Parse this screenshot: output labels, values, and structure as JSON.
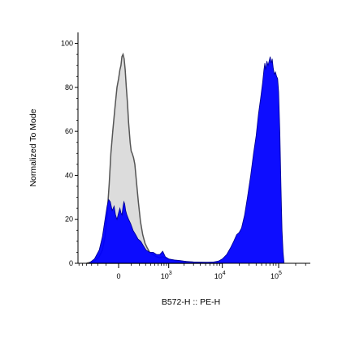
{
  "chart_data": {
    "type": "area",
    "xlabel": "B572-H :: PE-H",
    "ylabel": "Normalized To Mode",
    "ylim": [
      0,
      105
    ],
    "y_ticks": [
      "0",
      "20",
      "40",
      "60",
      "80",
      "100"
    ],
    "y_tick_values": [
      0,
      20,
      40,
      60,
      80,
      100
    ],
    "x_scale": "biexponential",
    "x_ticks": [
      {
        "value": 0,
        "base": "0",
        "exp": ""
      },
      {
        "value": 1000,
        "base": "10",
        "exp": "3"
      },
      {
        "value": 10000,
        "base": "10",
        "exp": "4"
      },
      {
        "value": 100000,
        "base": "10",
        "exp": "5"
      }
    ],
    "grid": false,
    "series": [
      {
        "fill": "#dcdcdc",
        "stroke": "#555555",
        "points": [
          [
            -400,
            0
          ],
          [
            -250,
            1
          ],
          [
            -180,
            3
          ],
          [
            -140,
            6
          ],
          [
            -110,
            12
          ],
          [
            -90,
            22
          ],
          [
            -70,
            36
          ],
          [
            -55,
            50
          ],
          [
            -40,
            60
          ],
          [
            -25,
            70
          ],
          [
            -10,
            80
          ],
          [
            0,
            84
          ],
          [
            8,
            88
          ],
          [
            15,
            90
          ],
          [
            22,
            94
          ],
          [
            30,
            95
          ],
          [
            38,
            93
          ],
          [
            46,
            88
          ],
          [
            55,
            80
          ],
          [
            65,
            73
          ],
          [
            75,
            64
          ],
          [
            90,
            55
          ],
          [
            100,
            51
          ],
          [
            110,
            50
          ],
          [
            125,
            48
          ],
          [
            140,
            45
          ],
          [
            160,
            37
          ],
          [
            185,
            28
          ],
          [
            215,
            19
          ],
          [
            250,
            13
          ],
          [
            290,
            9
          ],
          [
            330,
            7
          ],
          [
            380,
            5
          ],
          [
            450,
            4
          ],
          [
            550,
            3
          ],
          [
            650,
            2.5
          ],
          [
            750,
            3
          ],
          [
            850,
            2.5
          ],
          [
            950,
            2
          ],
          [
            1100,
            1.5
          ],
          [
            1300,
            1.2
          ],
          [
            1600,
            1
          ],
          [
            2000,
            0.8
          ],
          [
            3000,
            0.5
          ],
          [
            5000,
            0.3
          ],
          [
            10000,
            0
          ]
        ]
      },
      {
        "fill": "#0000ff",
        "stroke": "#00008c",
        "points": [
          [
            -350,
            0
          ],
          [
            -250,
            2
          ],
          [
            -180,
            6
          ],
          [
            -140,
            12
          ],
          [
            -110,
            20
          ],
          [
            -90,
            26
          ],
          [
            -75,
            29
          ],
          [
            -60,
            28
          ],
          [
            -45,
            24
          ],
          [
            -30,
            26
          ],
          [
            -20,
            22
          ],
          [
            -10,
            20
          ],
          [
            0,
            23
          ],
          [
            8,
            25
          ],
          [
            15,
            23
          ],
          [
            22,
            22
          ],
          [
            30,
            26
          ],
          [
            36,
            28
          ],
          [
            42,
            27
          ],
          [
            50,
            24
          ],
          [
            60,
            22
          ],
          [
            75,
            20
          ],
          [
            95,
            18
          ],
          [
            120,
            15
          ],
          [
            150,
            13
          ],
          [
            180,
            11
          ],
          [
            220,
            10
          ],
          [
            260,
            8
          ],
          [
            310,
            6
          ],
          [
            380,
            5
          ],
          [
            460,
            5
          ],
          [
            550,
            4
          ],
          [
            650,
            4
          ],
          [
            750,
            5.5
          ],
          [
            850,
            3
          ],
          [
            1000,
            2
          ],
          [
            1300,
            1.5
          ],
          [
            1700,
            1.2
          ],
          [
            2200,
            0.8
          ],
          [
            3000,
            0.6
          ],
          [
            4000,
            0.5
          ],
          [
            5500,
            0.5
          ],
          [
            7000,
            0.6
          ],
          [
            8500,
            1
          ],
          [
            10000,
            2
          ],
          [
            12000,
            4
          ],
          [
            14000,
            7
          ],
          [
            16000,
            10
          ],
          [
            18000,
            13
          ],
          [
            20000,
            14
          ],
          [
            22000,
            16
          ],
          [
            25000,
            22
          ],
          [
            28000,
            30
          ],
          [
            32000,
            40
          ],
          [
            36000,
            50
          ],
          [
            40000,
            58
          ],
          [
            44000,
            68
          ],
          [
            48000,
            75
          ],
          [
            52000,
            82
          ],
          [
            55000,
            88
          ],
          [
            57000,
            91
          ],
          [
            59000,
            88
          ],
          [
            62000,
            92
          ],
          [
            65000,
            90
          ],
          [
            68000,
            92
          ],
          [
            71000,
            94
          ],
          [
            74000,
            91
          ],
          [
            77000,
            93
          ],
          [
            80000,
            89
          ],
          [
            84000,
            86
          ],
          [
            88000,
            87
          ],
          [
            92000,
            85
          ],
          [
            96000,
            84
          ],
          [
            100000,
            78
          ],
          [
            105000,
            60
          ],
          [
            110000,
            35
          ],
          [
            115000,
            15
          ],
          [
            120000,
            5
          ],
          [
            125000,
            0
          ]
        ]
      }
    ]
  }
}
